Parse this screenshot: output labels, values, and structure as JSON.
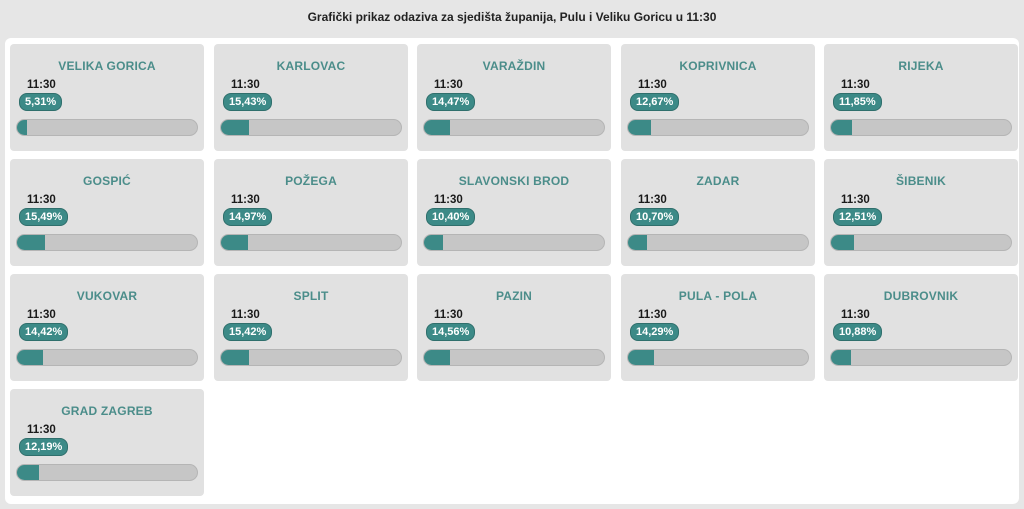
{
  "header": {
    "title": "Grafički prikaz odaziva za sjedišta županija, Pulu i Veliku Goricu u 11:30"
  },
  "colors": {
    "accent": "#3c8a87",
    "title_text": "#4b8d8a",
    "card_bg": "#e1e1e1",
    "bar_track": "#c6c6c6"
  },
  "chart_data": {
    "type": "bar",
    "title": "Grafički prikaz odaziva za sjedišta županija, Pulu i Veliku Goricu u 11:30",
    "ylim": [
      0,
      100
    ],
    "categories": [
      "VELIKA GORICA",
      "KARLOVAC",
      "VARAŽDIN",
      "KOPRIVNICA",
      "RIJEKA",
      "GOSPIĆ",
      "POŽEGA",
      "SLAVONSKI BROD",
      "ZADAR",
      "ŠIBENIK",
      "VUKOVAR",
      "SPLIT",
      "PAZIN",
      "PULA - POLA",
      "DUBROVNIK",
      "GRAD ZAGREB"
    ],
    "values": [
      5.31,
      15.43,
      14.47,
      12.67,
      11.85,
      15.49,
      14.97,
      10.4,
      10.7,
      12.51,
      14.42,
      15.42,
      14.56,
      14.29,
      10.88,
      12.19
    ],
    "items": [
      {
        "name": "VELIKA GORICA",
        "time": "11:30",
        "label": "5,31%",
        "value": 5.31
      },
      {
        "name": "KARLOVAC",
        "time": "11:30",
        "label": "15,43%",
        "value": 15.43
      },
      {
        "name": "VARAŽDIN",
        "time": "11:30",
        "label": "14,47%",
        "value": 14.47
      },
      {
        "name": "KOPRIVNICA",
        "time": "11:30",
        "label": "12,67%",
        "value": 12.67
      },
      {
        "name": "RIJEKA",
        "time": "11:30",
        "label": "11,85%",
        "value": 11.85
      },
      {
        "name": "GOSPIĆ",
        "time": "11:30",
        "label": "15,49%",
        "value": 15.49
      },
      {
        "name": "POŽEGA",
        "time": "11:30",
        "label": "14,97%",
        "value": 14.97
      },
      {
        "name": "SLAVONSKI BROD",
        "time": "11:30",
        "label": "10,40%",
        "value": 10.4
      },
      {
        "name": "ZADAR",
        "time": "11:30",
        "label": "10,70%",
        "value": 10.7
      },
      {
        "name": "ŠIBENIK",
        "time": "11:30",
        "label": "12,51%",
        "value": 12.51
      },
      {
        "name": "VUKOVAR",
        "time": "11:30",
        "label": "14,42%",
        "value": 14.42
      },
      {
        "name": "SPLIT",
        "time": "11:30",
        "label": "15,42%",
        "value": 15.42
      },
      {
        "name": "PAZIN",
        "time": "11:30",
        "label": "14,56%",
        "value": 14.56
      },
      {
        "name": "PULA - POLA",
        "time": "11:30",
        "label": "14,29%",
        "value": 14.29
      },
      {
        "name": "DUBROVNIK",
        "time": "11:30",
        "label": "10,88%",
        "value": 10.88
      },
      {
        "name": "GRAD ZAGREB",
        "time": "11:30",
        "label": "12,19%",
        "value": 12.19
      }
    ]
  }
}
